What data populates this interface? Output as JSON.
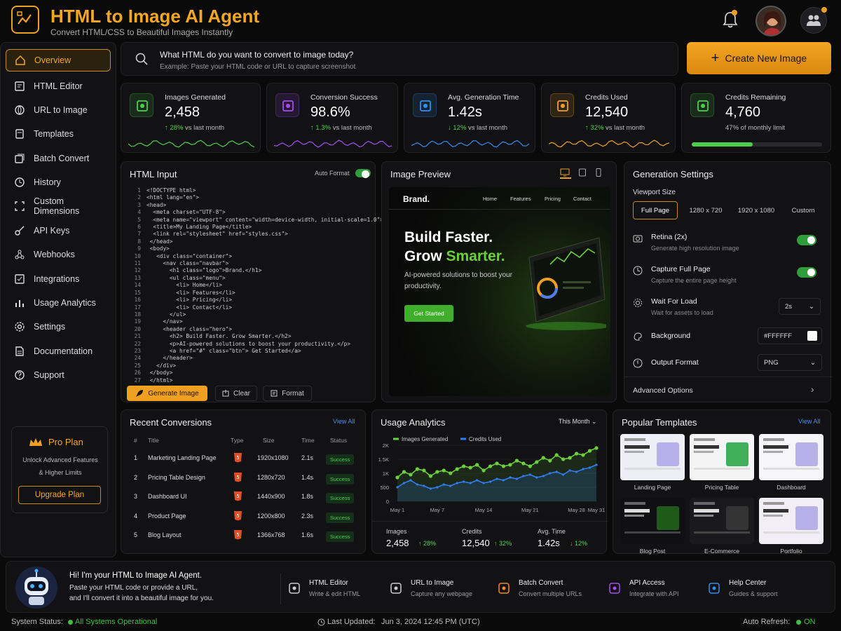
{
  "app": {
    "title": "HTML to Image AI Agent",
    "subtitle": "Convert HTML/CSS to Beautiful Images Instantly"
  },
  "sidebar": {
    "items": [
      {
        "label": "Overview",
        "icon": "home-icon",
        "active": true
      },
      {
        "label": "HTML Editor",
        "icon": "editor-icon"
      },
      {
        "label": "URL to Image",
        "icon": "link-icon"
      },
      {
        "label": "Templates",
        "icon": "templates-icon"
      },
      {
        "label": "Batch Convert",
        "icon": "batch-icon"
      },
      {
        "label": "History",
        "icon": "history-icon"
      },
      {
        "label": "Custom Dimensions",
        "icon": "dimensions-icon"
      },
      {
        "label": "API Keys",
        "icon": "key-icon"
      },
      {
        "label": "Webhooks",
        "icon": "webhook-icon"
      },
      {
        "label": "Integrations",
        "icon": "integrations-icon"
      },
      {
        "label": "Usage Analytics",
        "icon": "analytics-icon"
      },
      {
        "label": "Settings",
        "icon": "gear-icon"
      },
      {
        "label": "Documentation",
        "icon": "document-icon"
      },
      {
        "label": "Support",
        "icon": "help-icon"
      }
    ],
    "pro": {
      "title": "Pro Plan",
      "line1": "Unlock Advanced Features",
      "line2": "& Higher Limits",
      "button": "Upgrade Plan"
    }
  },
  "search": {
    "question": "What HTML do you want to convert to image today?",
    "placeholder": "Example: Paste your HTML code or URL to capture screenshot"
  },
  "create_button": "Create New Image",
  "stats": [
    {
      "label": "Images Generated",
      "value": "2,458",
      "change": "↑ 28%",
      "suffix": "vs last month",
      "color": "#4cd04c"
    },
    {
      "label": "Conversion Success",
      "value": "98.6%",
      "change": "↑ 1.3%",
      "suffix": "vs last month",
      "color": "#a64cf0"
    },
    {
      "label": "Avg. Generation Time",
      "value": "1.42s",
      "change": "↓ 12%",
      "suffix": "vs last month",
      "color": "#2f8ef0"
    },
    {
      "label": "Credits Used",
      "value": "12,540",
      "change": "↑ 32%",
      "suffix": "vs last month",
      "color": "#f0a020"
    },
    {
      "label": "Credits Remaining",
      "value": "4,760",
      "change": "47%",
      "suffix": "of monthly limit",
      "color": "#4cd04c",
      "progress": 0.47
    }
  ],
  "html_input": {
    "title": "HTML Input",
    "auto_format": "Auto Format",
    "code": [
      "<!DOCTYPE html>",
      "<html lang=\"en\">",
      "<head>",
      "  <meta charset=\"UTF-8\">",
      "  <meta name=\"viewport\" content=\"width=device-width, initial-scale=1.0\">",
      "  <title>My Landing Page</title>",
      "  <link rel=\"stylesheet\" href=\"styles.css\">",
      " </head>",
      " <body>",
      "   <div class=\"container\">",
      "     <nav class=\"navbar\">",
      "       <h1 class=\"logo\">Brand.</h1>",
      "       <ul class=\"menu\">",
      "         <li> Home</li>",
      "         <li> Features</li>",
      "         <li> Pricing</li>",
      "         <li> Contact</li>",
      "       </ul>",
      "     </nav>",
      "     <header class=\"hero\">",
      "       <h2> Build Faster. Grow Smarter.</h2>",
      "       <p>AI-powered solutions to boost your productivity.</p>",
      "       <a href=\"#\" class=\"btn\"> Get Started</a>",
      "     </header>",
      "   </div>",
      " </body>",
      " </html>"
    ],
    "generate": "Generate Image",
    "clear": "Clear",
    "format": "Format"
  },
  "preview": {
    "title": "Image Preview",
    "brand": "Brand.",
    "nav": [
      "Home",
      "Features",
      "Pricing",
      "Contact"
    ],
    "headline1": "Build Faster.",
    "headline2a": "Grow ",
    "headline2b": "Smarter.",
    "body": "AI-powered solutions to boost your productivity.",
    "cta": "Get Started"
  },
  "settings": {
    "title": "Generation Settings",
    "viewport_label": "Viewport Size",
    "viewports": [
      "Full Page",
      "1280 x 720",
      "1920 x 1080",
      "Custom"
    ],
    "retina": {
      "title": "Retina (2x)",
      "sub": "Generate high resolution image"
    },
    "full_page": {
      "title": "Capture Full Page",
      "sub": "Capture the entire page height"
    },
    "wait": {
      "title": "Wait For Load",
      "sub": "Wait for assets to load",
      "value": "2s"
    },
    "background": {
      "title": "Background",
      "value": "#FFFFFF"
    },
    "output": {
      "title": "Output Format",
      "value": "PNG"
    },
    "advanced": "Advanced Options"
  },
  "recent": {
    "title": "Recent Conversions",
    "view_all": "View All",
    "headers": [
      "#",
      "Title",
      "Type",
      "Size",
      "Time",
      "Status"
    ],
    "rows": [
      {
        "n": "1",
        "title": "Marketing Landing Page",
        "size": "1920x1080",
        "time": "2.1s",
        "status": "Success"
      },
      {
        "n": "2",
        "title": "Pricing Table Design",
        "size": "1280x720",
        "time": "1.4s",
        "status": "Success"
      },
      {
        "n": "3",
        "title": "Dashboard UI",
        "size": "1440x900",
        "time": "1.8s",
        "status": "Success"
      },
      {
        "n": "4",
        "title": "Product Page",
        "size": "1200x800",
        "time": "2.3s",
        "status": "Success"
      },
      {
        "n": "5",
        "title": "Blog Layout",
        "size": "1366x768",
        "time": "1.6s",
        "status": "Success"
      }
    ]
  },
  "usage": {
    "title": "Usage Analytics",
    "period": "This Month",
    "summary": [
      {
        "label": "Images",
        "value": "2,458",
        "change": "↑ 28%"
      },
      {
        "label": "Credits",
        "value": "12,540",
        "change": "↑ 32%"
      },
      {
        "label": "Avg. Time",
        "value": "1.42s",
        "change": "↓ 12%"
      }
    ]
  },
  "chart_data": {
    "type": "line",
    "x": [
      "May 1",
      "May 2",
      "May 3",
      "May 4",
      "May 5",
      "May 6",
      "May 7",
      "May 8",
      "May 9",
      "May 10",
      "May 11",
      "May 12",
      "May 13",
      "May 14",
      "May 15",
      "May 16",
      "May 17",
      "May 18",
      "May 19",
      "May 20",
      "May 21",
      "May 22",
      "May 23",
      "May 24",
      "May 25",
      "May 26",
      "May 27",
      "May 28",
      "May 29",
      "May 30",
      "May 31"
    ],
    "xticks": [
      "May 1",
      "May 7",
      "May 14",
      "May 21",
      "May 28",
      "May 31"
    ],
    "yticks": [
      "0",
      "500",
      "1K",
      "1.5K",
      "2K"
    ],
    "ylim": [
      0,
      2000
    ],
    "series": [
      {
        "name": "Images Generated",
        "color": "#6ad13a",
        "values": [
          850,
          1050,
          950,
          1150,
          1100,
          900,
          1050,
          1100,
          1000,
          1150,
          1250,
          1200,
          1300,
          1100,
          1250,
          1350,
          1250,
          1300,
          1450,
          1350,
          1250,
          1400,
          1550,
          1450,
          1650,
          1500,
          1550,
          1700,
          1650,
          1800,
          1900
        ]
      },
      {
        "name": "Credits Used",
        "color": "#2f7ef0",
        "values": [
          500,
          650,
          750,
          600,
          550,
          450,
          500,
          600,
          550,
          650,
          700,
          650,
          750,
          650,
          700,
          800,
          750,
          850,
          800,
          900,
          950,
          850,
          900,
          1000,
          1050,
          950,
          1100,
          1050,
          1150,
          1200,
          1300
        ]
      }
    ],
    "legend": "top"
  },
  "templates": {
    "title": "Popular Templates",
    "view_all": "View All",
    "items": [
      "Landing Page",
      "Pricing Table",
      "Dashboard",
      "Blog Post",
      "E-Commerce",
      "Portfolio"
    ]
  },
  "agent": {
    "greeting": "Hi! I'm your HTML to Image AI Agent.",
    "line1": "Paste your HTML code or provide a URL,",
    "line2": "and I'll convert it into a beautiful image for you.",
    "actions": [
      {
        "title": "HTML Editor",
        "sub": "Write & edit HTML"
      },
      {
        "title": "URL to Image",
        "sub": "Capture any webpage"
      },
      {
        "title": "Batch Convert",
        "sub": "Convert multiple URLs"
      },
      {
        "title": "API Access",
        "sub": "Integrate with API"
      },
      {
        "title": "Help Center",
        "sub": "Guides & support"
      }
    ]
  },
  "status": {
    "label": "System Status:",
    "value": "All Systems Operational",
    "updated_label": "Last Updated:",
    "updated": "Jun 3, 2024 12:45 PM (UTC)",
    "refresh_label": "Auto Refresh:",
    "refresh": "ON"
  }
}
